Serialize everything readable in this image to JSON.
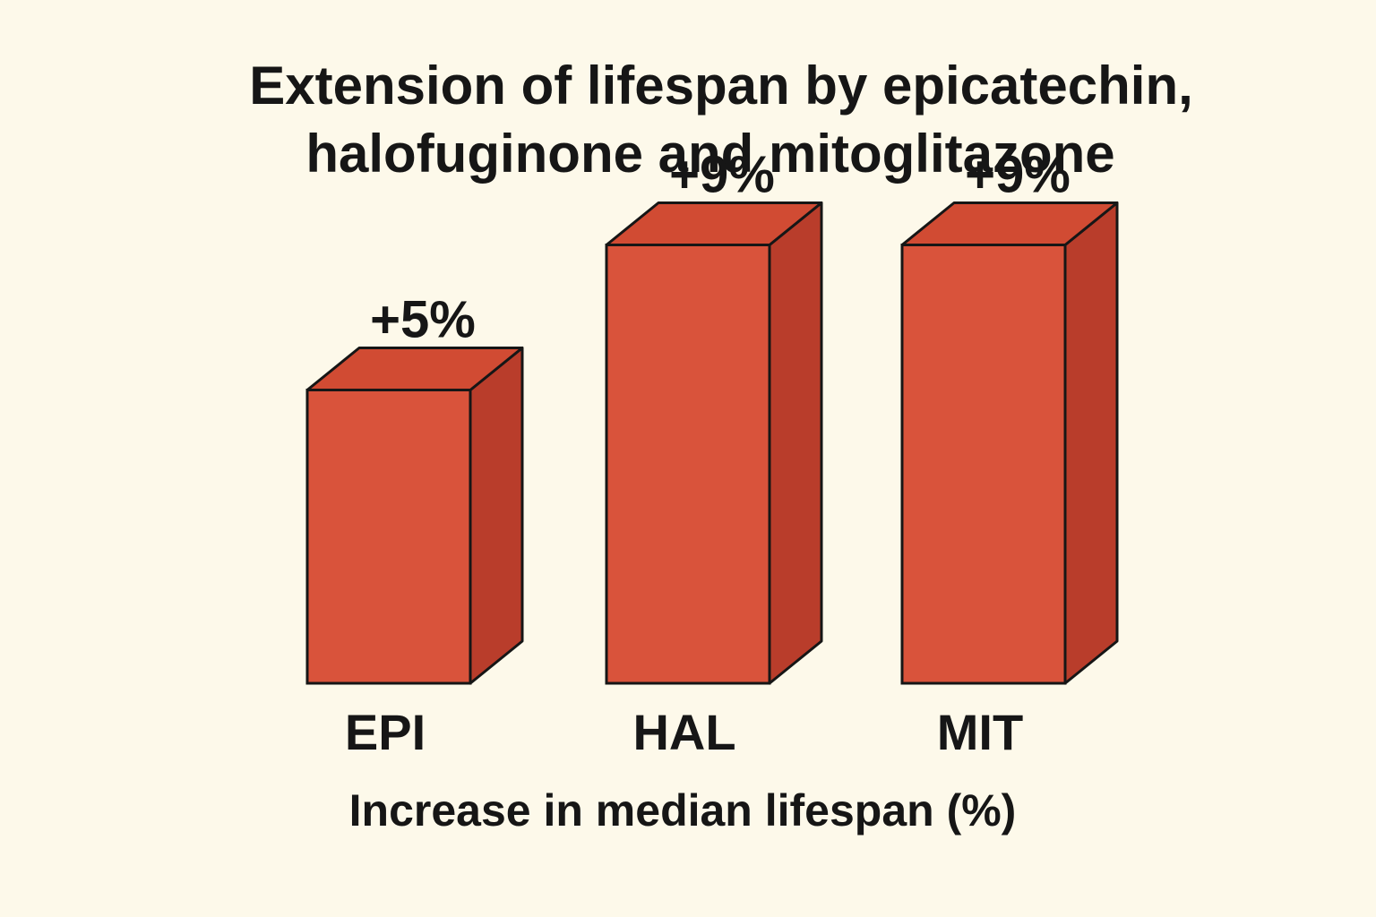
{
  "colors": {
    "background": "#fdf9ea",
    "bar_front": "#d9533b",
    "bar_top": "#d14b33",
    "bar_side": "#b93d2b",
    "outline": "#161616",
    "text": "#161616"
  },
  "chart_data": {
    "type": "bar",
    "style": "3d",
    "title": "Extension of lifespan by epicatechin, halofuginone and mitoglitazone",
    "title_lines": [
      "Extension of lifespan by epicatechin,",
      "halofuginone and mitoglitazone"
    ],
    "xlabel": "Increase in median lifespan (%)",
    "ylabel": "",
    "categories": [
      "EPI",
      "HAL",
      "MIT"
    ],
    "values": [
      5,
      9,
      9
    ],
    "value_labels": [
      "+5%",
      "+9%",
      "+9%"
    ],
    "grid": false,
    "legend": "none"
  }
}
